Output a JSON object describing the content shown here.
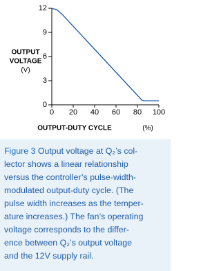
{
  "chart_data": {
    "type": "line",
    "y_label_lines": [
      "OUTPUT",
      "VOLTAGE",
      "(V)"
    ],
    "x_label": "OUTPUT-DUTY CYCLE",
    "x_unit": "(%)",
    "x": [
      0,
      5,
      10,
      84,
      86,
      100
    ],
    "series": [
      {
        "color": "#1f5ea8",
        "values": [
          12,
          11.8,
          11.2,
          0.6,
          0.5,
          0.5
        ]
      }
    ],
    "xlim": [
      0,
      100
    ],
    "xticks": [
      0,
      20,
      40,
      60,
      80,
      100
    ],
    "ylim": [
      0,
      12
    ],
    "yticks": [
      0,
      3,
      6,
      9,
      12
    ],
    "grid": false
  },
  "caption": {
    "label": "Figure 3",
    "lines": [
      " Output voltage at Q₂’s col-",
      "lector shows a linear relationship",
      "versus the controller’s pulse-width-",
      "modulated output-duty cycle. (The",
      "pulse width increases as the temper-",
      "ature increases.) The fan’s operating",
      "voltage corresponds to the differ-",
      "ence between Q₂’s output voltage",
      "and the 12V supply rail."
    ]
  }
}
